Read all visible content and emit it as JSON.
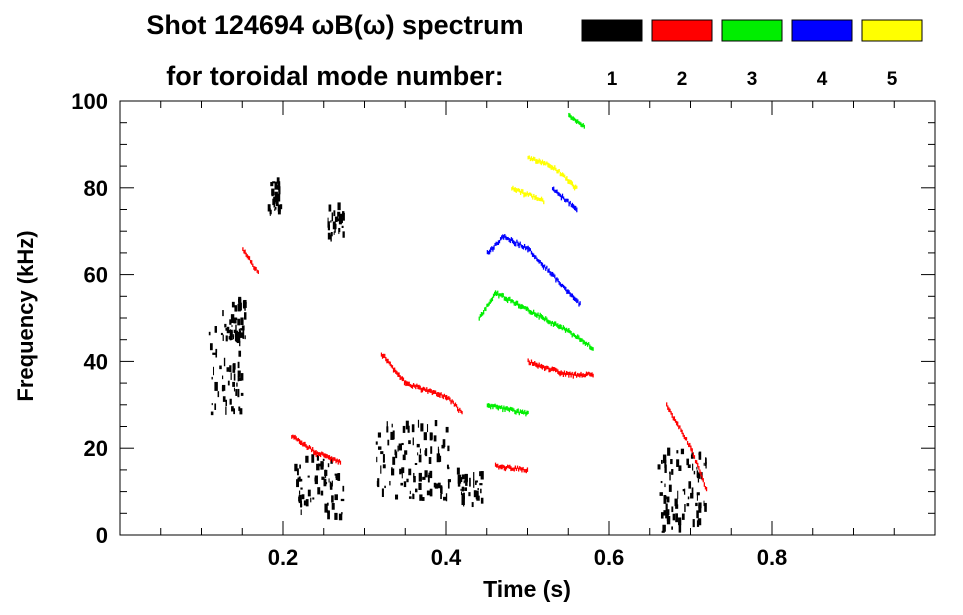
{
  "chart_data": {
    "type": "heatmap",
    "title_line1": "Shot 124694 ωB(ω) spectrum",
    "title_line2": "for toroidal mode number:",
    "xlabel": "Time (s)",
    "ylabel": "Frequency (kHz)",
    "xlim": [
      0.0,
      1.0
    ],
    "ylim": [
      0,
      100
    ],
    "x_ticks": [
      0.2,
      0.4,
      0.6,
      0.8
    ],
    "x_tick_labels": [
      "0.2",
      "0.4",
      "0.6",
      "0.8"
    ],
    "y_ticks": [
      0,
      20,
      40,
      60,
      80,
      100
    ],
    "y_tick_labels": [
      "0",
      "20",
      "40",
      "60",
      "80",
      "100"
    ],
    "legend": [
      {
        "n": "1",
        "color": "#000000"
      },
      {
        "n": "2",
        "color": "#ff0000"
      },
      {
        "n": "3",
        "color": "#00ee00"
      },
      {
        "n": "4",
        "color": "#0000ff"
      },
      {
        "n": "5",
        "color": "#ffff00"
      }
    ],
    "series": [
      {
        "name": "n=1",
        "color": "#000000",
        "blobs": [
          {
            "t": 0.13,
            "f": 38,
            "dt": 0.04,
            "df": 20
          },
          {
            "t": 0.14,
            "f": 50,
            "dt": 0.03,
            "df": 10
          },
          {
            "t": 0.19,
            "f": 78,
            "dt": 0.015,
            "df": 8
          },
          {
            "t": 0.245,
            "f": 11,
            "dt": 0.06,
            "df": 14
          },
          {
            "t": 0.265,
            "f": 72,
            "dt": 0.02,
            "df": 8
          },
          {
            "t": 0.36,
            "f": 17,
            "dt": 0.09,
            "df": 18
          },
          {
            "t": 0.43,
            "f": 11,
            "dt": 0.03,
            "df": 8
          },
          {
            "t": 0.69,
            "f": 10,
            "dt": 0.06,
            "df": 20
          }
        ]
      },
      {
        "name": "n=2",
        "color": "#ff0000",
        "ridges": [
          {
            "points": [
              [
                0.21,
                23
              ],
              [
                0.24,
                19
              ],
              [
                0.27,
                17
              ]
            ]
          },
          {
            "points": [
              [
                0.32,
                42
              ],
              [
                0.35,
                35
              ],
              [
                0.4,
                32
              ],
              [
                0.42,
                28
              ]
            ]
          },
          {
            "points": [
              [
                0.46,
                16
              ],
              [
                0.5,
                15
              ]
            ]
          },
          {
            "points": [
              [
                0.5,
                40
              ],
              [
                0.55,
                37
              ],
              [
                0.58,
                37
              ]
            ]
          },
          {
            "points": [
              [
                0.15,
                66
              ],
              [
                0.17,
                60
              ]
            ]
          },
          {
            "points": [
              [
                0.67,
                30
              ],
              [
                0.7,
                20
              ],
              [
                0.72,
                10
              ]
            ]
          }
        ]
      },
      {
        "name": "n=3",
        "color": "#00ee00",
        "ridges": [
          {
            "points": [
              [
                0.44,
                50
              ],
              [
                0.46,
                56
              ],
              [
                0.5,
                52
              ],
              [
                0.55,
                47
              ],
              [
                0.58,
                43
              ]
            ]
          },
          {
            "points": [
              [
                0.45,
                30
              ],
              [
                0.5,
                28
              ]
            ]
          },
          {
            "points": [
              [
                0.55,
                97
              ],
              [
                0.57,
                94
              ]
            ]
          }
        ]
      },
      {
        "name": "n=4",
        "color": "#0000ff",
        "ridges": [
          {
            "points": [
              [
                0.45,
                65
              ],
              [
                0.47,
                69
              ],
              [
                0.5,
                66
              ],
              [
                0.53,
                60
              ],
              [
                0.565,
                53
              ]
            ]
          },
          {
            "points": [
              [
                0.53,
                80
              ],
              [
                0.56,
                75
              ]
            ]
          }
        ]
      },
      {
        "name": "n=5",
        "color": "#ffff00",
        "ridges": [
          {
            "points": [
              [
                0.5,
                87
              ],
              [
                0.53,
                85
              ],
              [
                0.56,
                80
              ]
            ]
          },
          {
            "points": [
              [
                0.48,
                80
              ],
              [
                0.52,
                77
              ]
            ]
          }
        ]
      }
    ]
  }
}
